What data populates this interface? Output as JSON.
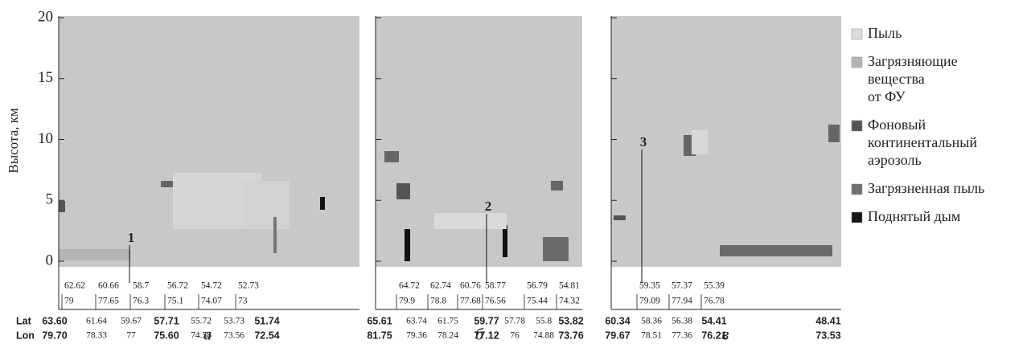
{
  "figure": {
    "y_label": "Высота,  км",
    "ylim": [
      0,
      20
    ],
    "yticks": [
      0,
      5,
      10,
      15,
      20
    ],
    "panels": [
      {
        "letter": "а",
        "marker": "1",
        "inner_lat": [
          "62.62",
          "60.66",
          "58.7",
          "56.72",
          "54.72",
          "52.73"
        ],
        "inner_lon": [
          "79",
          "77.65",
          "76.3",
          "75.1",
          "74.07",
          "73"
        ],
        "outer": [
          {
            "lat": "63.60",
            "lon": "79.70",
            "bold": true
          },
          {
            "lat": "61.64",
            "lon": "78.33",
            "bold": false
          },
          {
            "lat": "59.67",
            "lon": "77",
            "bold": false
          },
          {
            "lat": "57.71",
            "lon": "75.60",
            "bold": true
          },
          {
            "lat": "55.72",
            "lon": "74.58",
            "bold": false
          },
          {
            "lat": "53.73",
            "lon": "73.56",
            "bold": false
          },
          {
            "lat": "51.74",
            "lon": "72.54",
            "bold": true
          }
        ]
      },
      {
        "letter": "б",
        "marker": "2",
        "inner_lat": [
          "64.72",
          "62.74",
          "60.76",
          "58.77",
          "56.79",
          "54.81"
        ],
        "inner_lon": [
          "79.9",
          "78.8",
          "77.68",
          "76.56",
          "75.44",
          "74.32"
        ],
        "outer": [
          {
            "lat": "65.61",
            "lon": "81.75",
            "bold": true
          },
          {
            "lat": "63.74",
            "lon": "79.36",
            "bold": false
          },
          {
            "lat": "61.75",
            "lon": "78.24",
            "bold": false
          },
          {
            "lat": "59.77",
            "lon": "77.12",
            "bold": true
          },
          {
            "lat": "57.78",
            "lon": "76",
            "bold": false
          },
          {
            "lat": "55.8",
            "lon": "74.88",
            "bold": false
          },
          {
            "lat": "53.82",
            "lon": "73.76",
            "bold": true
          }
        ]
      },
      {
        "letter": "в",
        "marker": "3",
        "inner_lat": [
          "59.35",
          "57.37",
          "55.39"
        ],
        "inner_lon": [
          "79.09",
          "77.94",
          "76.78"
        ],
        "outer": [
          {
            "lat": "60.34",
            "lon": "79.67",
            "bold": true
          },
          {
            "lat": "58.36",
            "lon": "78.51",
            "bold": false
          },
          {
            "lat": "56.38",
            "lon": "77.36",
            "bold": false
          },
          {
            "lat": "54.41",
            "lon": "76.21",
            "bold": true
          },
          {
            "lat": "48.41",
            "lon": "73.53",
            "bold": true
          }
        ]
      }
    ],
    "row_labels": {
      "lat": "Lat",
      "lon": "Lon"
    },
    "legend": [
      {
        "lines": [
          "Пыль"
        ],
        "color": "#dcdcdc"
      },
      {
        "lines": [
          "Загрязняющие",
          "вещества",
          "от ФУ"
        ],
        "color": "#b4b4b4"
      },
      {
        "lines": [
          "Фоновый",
          "континентальный",
          "аэрозоль"
        ],
        "color": "#555555"
      },
      {
        "lines": [
          "Загрязненная пыль"
        ],
        "color": "#707070"
      },
      {
        "lines": [
          "Поднятый дым"
        ],
        "color": "#151515"
      }
    ]
  }
}
